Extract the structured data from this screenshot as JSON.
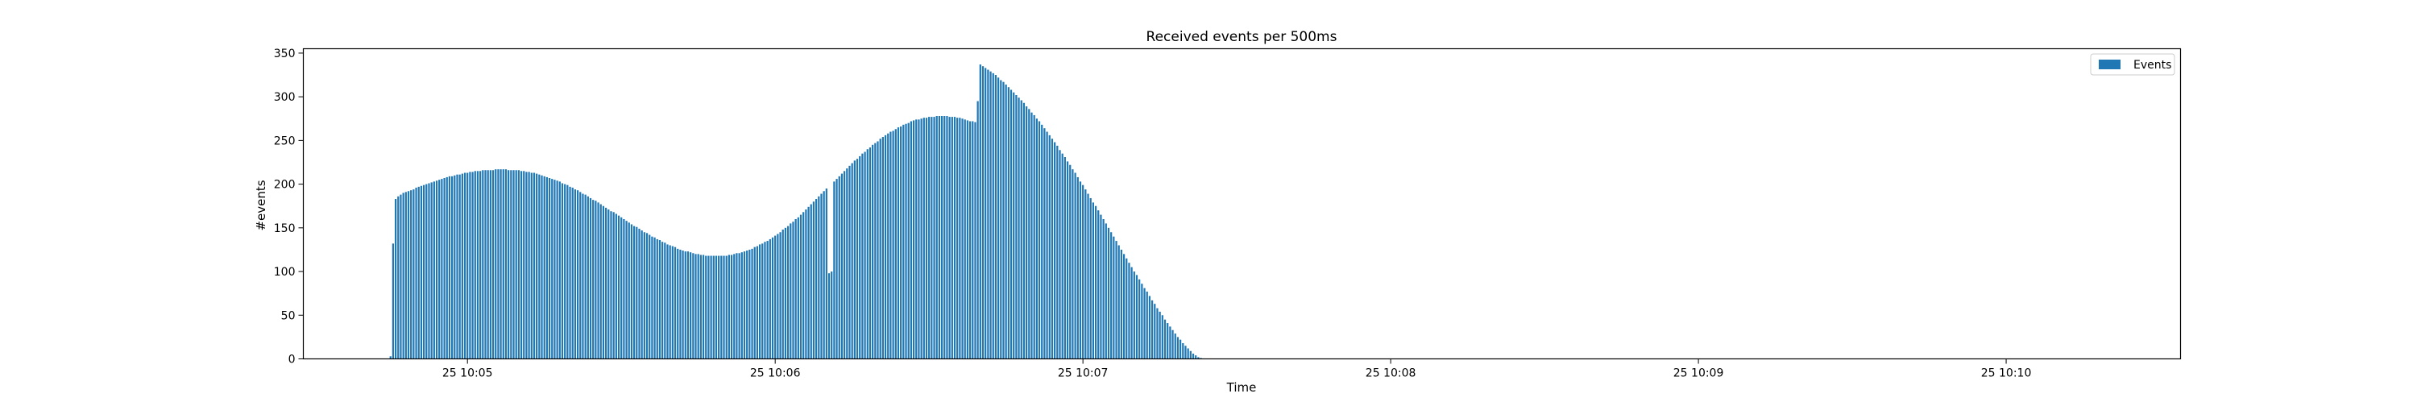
{
  "chart_data": {
    "type": "bar",
    "title": "Received events per 500ms",
    "xlabel": "Time",
    "ylabel": "#events",
    "ylim": [
      0,
      355
    ],
    "yticks": [
      0,
      50,
      100,
      150,
      200,
      250,
      300,
      350
    ],
    "xlim": [
      "10:04:28",
      "10:10:34"
    ],
    "xticks": [
      {
        "time": "10:05:00",
        "label": "25 10:05"
      },
      {
        "time": "10:06:00",
        "label": "25 10:06"
      },
      {
        "time": "10:07:00",
        "label": "25 10:07"
      },
      {
        "time": "10:08:00",
        "label": "25 10:08"
      },
      {
        "time": "10:09:00",
        "label": "25 10:09"
      },
      {
        "time": "10:10:00",
        "label": "25 10:10"
      }
    ],
    "grid": false,
    "legend": "top-right",
    "bar_color": "#1f77b4",
    "series": [
      {
        "name": "Events",
        "color": "#1f77b4",
        "interval_seconds": 0.5,
        "start": "10:04:45.0",
        "values": [
          3,
          132,
          183,
          186,
          188,
          190,
          191,
          192,
          193,
          194,
          196,
          197,
          198,
          199,
          200,
          201,
          202,
          203,
          204,
          205,
          206,
          207,
          208,
          209,
          209,
          210,
          211,
          211,
          212,
          213,
          213,
          214,
          214,
          215,
          215,
          215,
          216,
          216,
          216,
          216,
          216,
          217,
          217,
          217,
          217,
          217,
          216,
          216,
          216,
          216,
          216,
          215,
          215,
          214,
          214,
          213,
          213,
          212,
          211,
          210,
          209,
          208,
          207,
          206,
          205,
          204,
          203,
          201,
          200,
          199,
          197,
          196,
          194,
          193,
          191,
          189,
          188,
          186,
          184,
          182,
          181,
          179,
          177,
          175,
          173,
          171,
          169,
          168,
          166,
          164,
          162,
          160,
          158,
          156,
          154,
          152,
          151,
          149,
          147,
          145,
          144,
          142,
          140,
          139,
          137,
          136,
          134,
          133,
          131,
          130,
          129,
          128,
          126,
          125,
          124,
          123,
          123,
          122,
          121,
          120,
          120,
          119,
          119,
          118,
          118,
          118,
          118,
          118,
          118,
          118,
          118,
          118,
          119,
          119,
          120,
          121,
          121,
          122,
          123,
          124,
          125,
          126,
          128,
          129,
          131,
          132,
          134,
          135,
          137,
          139,
          141,
          143,
          145,
          148,
          150,
          152,
          155,
          157,
          160,
          162,
          165,
          168,
          171,
          174,
          177,
          180,
          183,
          186,
          189,
          192,
          195,
          98,
          100,
          203,
          206,
          209,
          212,
          215,
          218,
          221,
          224,
          227,
          229,
          232,
          235,
          237,
          240,
          242,
          245,
          247,
          249,
          252,
          254,
          256,
          258,
          260,
          261,
          263,
          265,
          266,
          268,
          269,
          270,
          272,
          273,
          274,
          274,
          275,
          276,
          276,
          277,
          277,
          277,
          278,
          278,
          278,
          278,
          278,
          277,
          277,
          277,
          276,
          276,
          275,
          274,
          273,
          272,
          272,
          271,
          295,
          337,
          335,
          333,
          331,
          329,
          327,
          325,
          322,
          319,
          317,
          314,
          311,
          308,
          305,
          302,
          299,
          296,
          293,
          289,
          286,
          282,
          279,
          275,
          272,
          268,
          264,
          260,
          256,
          252,
          248,
          244,
          239,
          235,
          231,
          226,
          222,
          217,
          213,
          208,
          203,
          199,
          194,
          189,
          184,
          179,
          175,
          170,
          165,
          160,
          155,
          150,
          145,
          140,
          135,
          130,
          125,
          120,
          115,
          110,
          105,
          100,
          96,
          91,
          86,
          81,
          77,
          72,
          67,
          63,
          58,
          54,
          50,
          45,
          41,
          37,
          33,
          29,
          25,
          22,
          18,
          15,
          12,
          9,
          6,
          4,
          2,
          1
        ]
      }
    ]
  }
}
